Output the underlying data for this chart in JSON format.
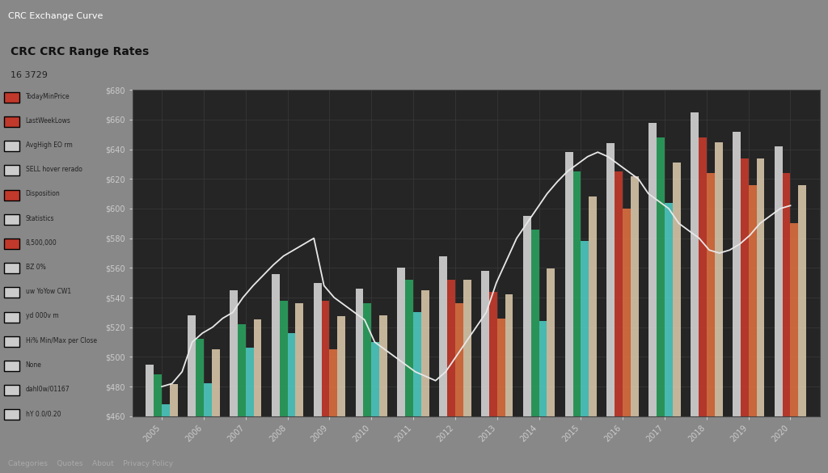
{
  "title": "CRC CRC Range Rates",
  "subtitle": "16 3729",
  "background_color": "#888888",
  "plot_bg_color": "#252525",
  "grid_color": "#3a3a3a",
  "text_color": "#cccccc",
  "years": [
    2005,
    2006,
    2007,
    2008,
    2009,
    2010,
    2011,
    2012,
    2013,
    2014,
    2015,
    2016,
    2017,
    2018,
    2019,
    2020
  ],
  "exchange_rate_line": [
    480,
    482,
    490,
    510,
    516,
    520,
    526,
    530,
    540,
    548,
    555,
    562,
    568,
    572,
    576,
    580,
    548,
    540,
    535,
    530,
    525,
    510,
    505,
    500,
    495,
    490,
    487,
    484,
    490,
    500,
    510,
    520,
    530,
    550,
    565,
    580,
    590,
    600,
    610,
    618,
    625,
    630,
    635,
    638,
    635,
    630,
    625,
    620,
    610,
    605,
    600,
    590,
    585,
    580,
    572,
    570,
    572,
    576,
    582,
    590,
    595,
    600,
    602
  ],
  "bar_groups": [
    {
      "open": 472,
      "high": 495,
      "low": 468,
      "close": 488
    },
    {
      "open": 488,
      "high": 528,
      "low": 482,
      "close": 512
    },
    {
      "open": 512,
      "high": 545,
      "low": 506,
      "close": 522
    },
    {
      "open": 522,
      "high": 556,
      "low": 516,
      "close": 538
    },
    {
      "open": 538,
      "high": 550,
      "low": 505,
      "close": 514
    },
    {
      "open": 514,
      "high": 546,
      "low": 510,
      "close": 536
    },
    {
      "open": 536,
      "high": 560,
      "low": 530,
      "close": 552
    },
    {
      "open": 552,
      "high": 568,
      "low": 536,
      "close": 544
    },
    {
      "open": 544,
      "high": 558,
      "low": 526,
      "close": 530
    },
    {
      "open": 530,
      "high": 595,
      "low": 524,
      "close": 586
    },
    {
      "open": 586,
      "high": 638,
      "low": 578,
      "close": 625
    },
    {
      "open": 625,
      "high": 644,
      "low": 600,
      "close": 610
    },
    {
      "open": 610,
      "high": 658,
      "low": 604,
      "close": 648
    },
    {
      "open": 648,
      "high": 665,
      "low": 624,
      "close": 634
    },
    {
      "open": 634,
      "high": 652,
      "low": 616,
      "close": 624
    },
    {
      "open": 624,
      "high": 642,
      "low": 590,
      "close": 606
    }
  ],
  "colors": {
    "bar_up": "#2a9d5c",
    "bar_down": "#c0392b",
    "bar_neutral": "#e8d5b5",
    "bar_white": "#d0d0d0",
    "bar_teal": "#4ecdc4",
    "bar_orange": "#e07040",
    "line": "#e8e8e8"
  },
  "ylim": [
    460,
    680
  ],
  "title_fontsize": 18,
  "axis_fontsize": 7,
  "nav_bg": "#2c2c2c",
  "sidebar_bg": "#b0b0b0",
  "legend_items": [
    [
      "#c0392b",
      "TodayMinPrice"
    ],
    [
      "#c0392b",
      "LastWeekLows"
    ],
    [
      "#cccccc",
      "AvgHigh EO rm"
    ],
    [
      "#cccccc",
      "SELL hover rerado"
    ],
    [
      "#c0392b",
      "Disposition"
    ],
    [
      "#cccccc",
      "Statistics"
    ],
    [
      "#c0392b",
      "8,500,000"
    ],
    [
      "#cccccc",
      "BZ 0%"
    ],
    [
      "#cccccc",
      "uw YoYow CW1"
    ],
    [
      "#cccccc",
      "yd 000v m"
    ],
    [
      "#cccccc",
      "Hi% Min/Max per Close"
    ],
    [
      "#cccccc",
      "None"
    ],
    [
      "#cccccc",
      "dahl0w/01167"
    ],
    [
      "#cccccc",
      "hY 0.0/0.20"
    ]
  ]
}
